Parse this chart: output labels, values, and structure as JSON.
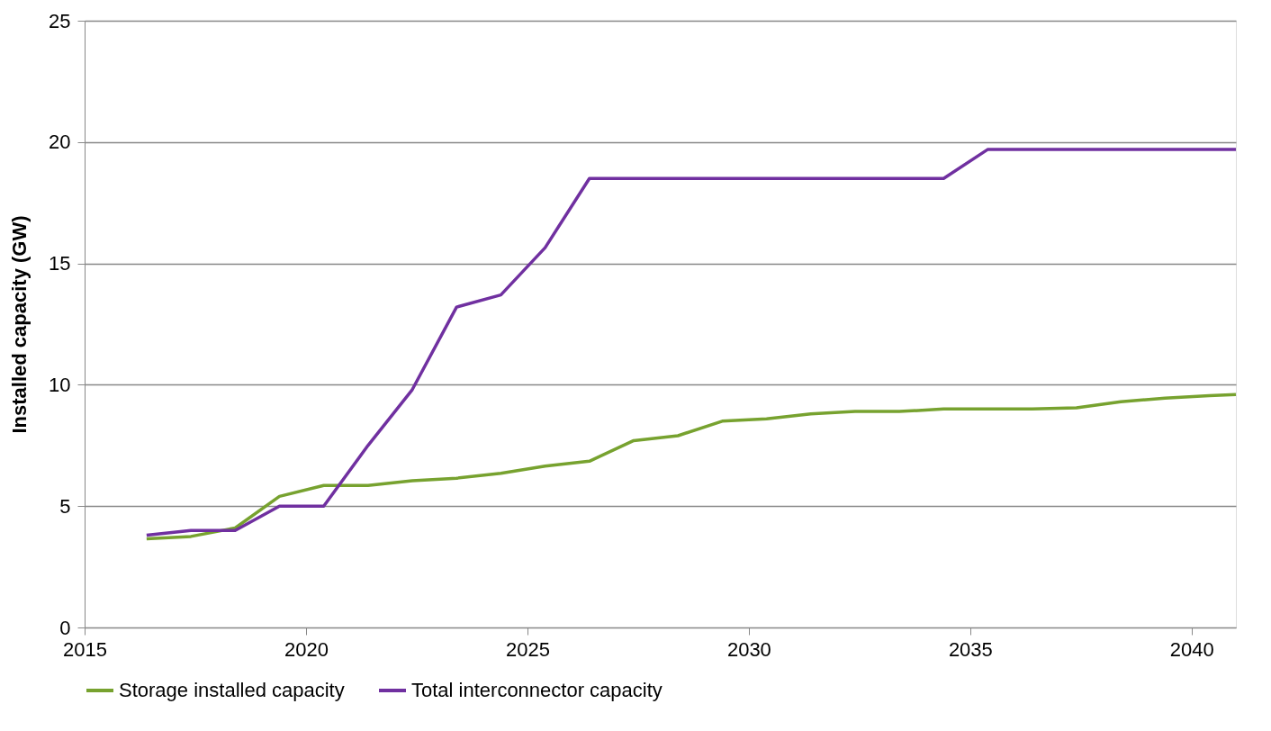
{
  "chart_data": {
    "type": "line",
    "ylabel": "Installed capacity (GW)",
    "x": [
      2016.4,
      2017.4,
      2018.4,
      2019.4,
      2020.4,
      2021.4,
      2022.4,
      2023.4,
      2024.4,
      2025.4,
      2026.4,
      2027.4,
      2028.4,
      2029.4,
      2030.4,
      2031.4,
      2032.4,
      2033.4,
      2034.4,
      2035.4,
      2036.4,
      2037.4,
      2038.4,
      2039.4,
      2040.4,
      2041
    ],
    "series": [
      {
        "name": "Storage installed capacity",
        "color": "#77a22f",
        "values": [
          3.65,
          3.75,
          4.1,
          5.4,
          5.85,
          5.85,
          6.05,
          6.15,
          6.35,
          6.65,
          6.85,
          7.7,
          7.9,
          8.5,
          8.6,
          8.8,
          8.9,
          8.9,
          9.0,
          9.0,
          9.0,
          9.05,
          9.3,
          9.45,
          9.55,
          9.6
        ]
      },
      {
        "name": "Total interconnector capacity",
        "color": "#7030a0",
        "values": [
          3.8,
          4.0,
          4.0,
          5.0,
          5.0,
          7.5,
          9.8,
          13.2,
          13.7,
          15.65,
          18.5,
          18.5,
          18.5,
          18.5,
          18.5,
          18.5,
          18.5,
          18.5,
          18.5,
          19.7,
          19.7,
          19.7,
          19.7,
          19.7,
          19.7,
          19.7
        ]
      }
    ],
    "xlim": [
      2015,
      2041
    ],
    "xticks": [
      2015,
      2020,
      2025,
      2030,
      2035,
      2040
    ],
    "ylim": [
      0,
      25
    ],
    "yticks": [
      0,
      5,
      10,
      15,
      20,
      25
    ],
    "grid": "y",
    "legend": "bottom",
    "line_style": "solid",
    "marker": "none"
  }
}
